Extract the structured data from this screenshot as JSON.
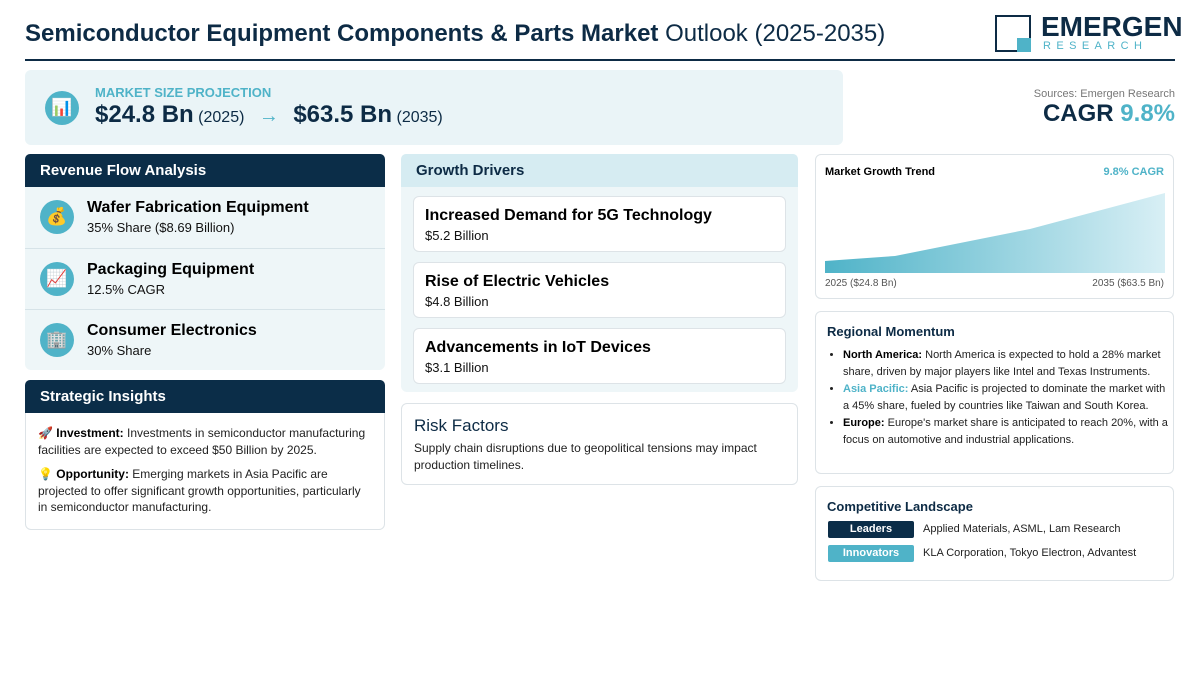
{
  "header": {
    "title_bold": "Semiconductor Equipment Components & Parts Market",
    "title_rest": "Outlook (2025-2035)",
    "logo_top": "EMERGEN",
    "logo_bottom": "RESEARCH"
  },
  "projection": {
    "icon": "📊",
    "label": "MARKET SIZE PROJECTION",
    "start_value": "$24.8 Bn",
    "start_year": "(2025)",
    "arrow": "→",
    "end_value": "$63.5 Bn",
    "end_year": "(2035)"
  },
  "source": {
    "text": "Sources: Emergen Research",
    "cagr_label": "CAGR",
    "cagr_value": "9.8%"
  },
  "revenue_flow": {
    "title": "Revenue Flow Analysis",
    "items": [
      {
        "icon": "💰",
        "title": "Wafer Fabrication Equipment",
        "detail": "35% Share ($8.69 Billion)"
      },
      {
        "icon": "📈",
        "title": "Packaging Equipment",
        "detail": "12.5% CAGR"
      },
      {
        "icon": "🏢",
        "title": "Consumer Electronics",
        "detail": "30% Share"
      }
    ]
  },
  "strategic_insights": {
    "title": "Strategic Insights",
    "items": [
      {
        "icon": "🚀",
        "label": "Investment:",
        "text": "Investments in semiconductor manufacturing facilities are expected to exceed $50 Billion by 2025."
      },
      {
        "icon": "💡",
        "label": "Opportunity:",
        "text": "Emerging markets in Asia Pacific are projected to offer significant growth opportunities, particularly in semiconductor manufacturing."
      }
    ]
  },
  "growth_drivers": {
    "title": "Growth Drivers",
    "items": [
      {
        "title": "Increased Demand for 5G Technology",
        "value": "$5.2 Billion"
      },
      {
        "title": "Rise of Electric Vehicles",
        "value": "$4.8 Billion"
      },
      {
        "title": "Advancements in IoT Devices",
        "value": "$3.1 Billion"
      }
    ]
  },
  "risk_factors": {
    "title": "Risk Factors",
    "text": "Supply chain disruptions due to geopolitical tensions may impact production timelines."
  },
  "trend": {
    "title": "Market Growth Trend",
    "badge": "9.8% CAGR",
    "start_label": "2025 ($24.8 Bn)",
    "end_label": "2035 ($63.5 Bn)"
  },
  "regional": {
    "title": "Regional Momentum",
    "items": [
      {
        "label": "North America:",
        "text": "North America is expected to hold a 28% market share, driven by major players like Intel and Texas Instruments."
      },
      {
        "label": "Asia Pacific:",
        "text": "Asia Pacific is projected to dominate the market with a 45% share, fueled by countries like Taiwan and South Korea."
      },
      {
        "label": "Europe:",
        "text": "Europe's market share is anticipated to reach 20%, with a focus on automotive and industrial applications."
      }
    ]
  },
  "competitive": {
    "title": "Competitive Landscape",
    "rows": [
      {
        "badge": "Leaders",
        "text": "Applied Materials, ASML, Lam Research"
      },
      {
        "badge": "Innovators",
        "text": "KLA Corporation, Tokyo Electron, Advantest"
      }
    ]
  }
}
